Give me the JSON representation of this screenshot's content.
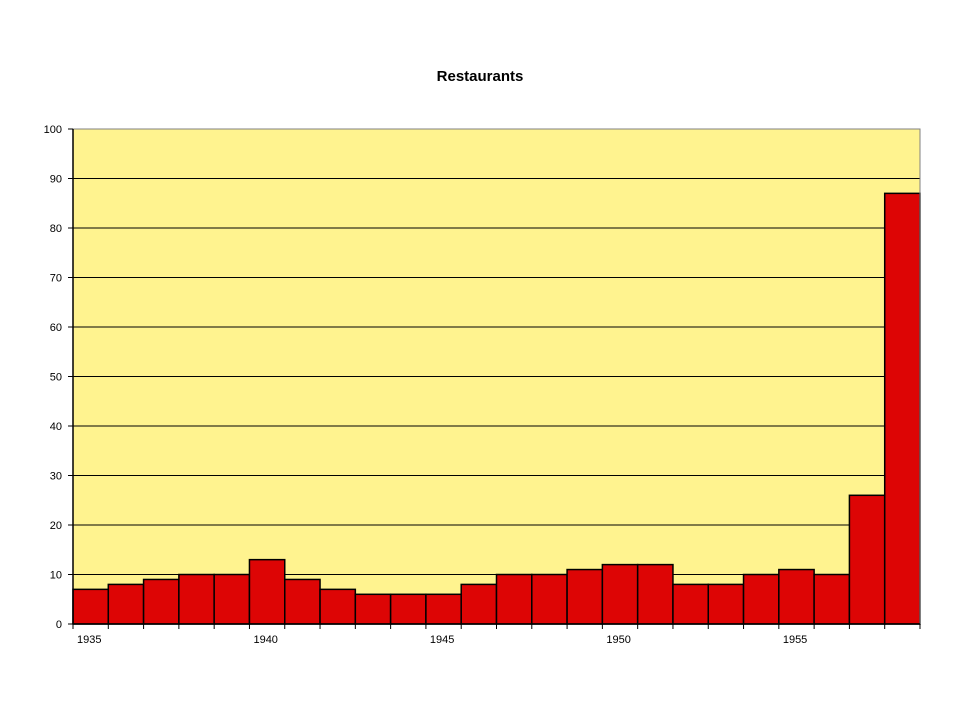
{
  "chart_data": {
    "type": "bar",
    "title": "Restaurants",
    "xlabel": "",
    "ylabel": "",
    "ylim": [
      0,
      100
    ],
    "yticks": [
      0,
      10,
      20,
      30,
      40,
      50,
      60,
      70,
      80,
      90,
      100
    ],
    "xtick_labels": [
      "1935",
      "1940",
      "1945",
      "1950",
      "1955"
    ],
    "categories": [
      "1935",
      "1936",
      "1937",
      "1938",
      "1939",
      "1940",
      "1941",
      "1942",
      "1943",
      "1944",
      "1945",
      "1946",
      "1947",
      "1948",
      "1949",
      "1950",
      "1951",
      "1952",
      "1953",
      "1954",
      "1955",
      "1956",
      "1957",
      "1958"
    ],
    "values": [
      7,
      8,
      9,
      10,
      10,
      13,
      9,
      7,
      6,
      6,
      6,
      8,
      10,
      10,
      11,
      12,
      12,
      8,
      8,
      10,
      11,
      10,
      26,
      87
    ],
    "grid": true,
    "colors": {
      "plot_bg": "#FFF38F",
      "bar_fill": "#DD0505",
      "bar_stroke": "#000000",
      "gridline": "#000000"
    }
  }
}
